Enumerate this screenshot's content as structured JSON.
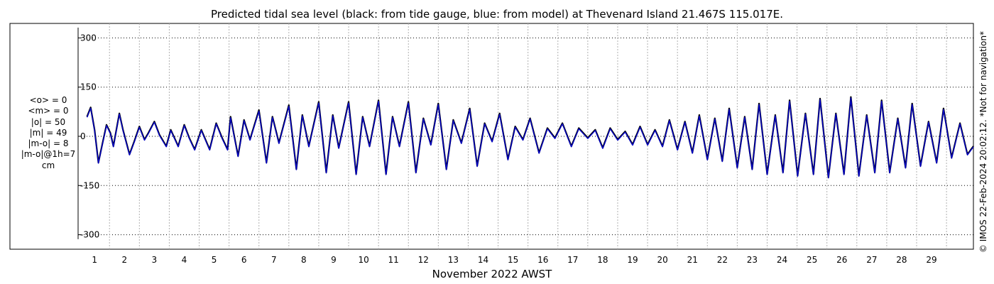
{
  "chart_data": {
    "type": "line",
    "title": "Predicted tidal sea level (black: from tide gauge, blue: from model) at Thevenard Island 21.467S 115.017E.",
    "xlabel": "November 2022 AWST",
    "ylabel": "",
    "x_ticks": [
      "1",
      "2",
      "3",
      "4",
      "5",
      "6",
      "7",
      "8",
      "9",
      "10",
      "11",
      "12",
      "13",
      "14",
      "15",
      "16",
      "17",
      "18",
      "19",
      "20",
      "21",
      "22",
      "23",
      "24",
      "25",
      "26",
      "27",
      "28",
      "29"
    ],
    "xlim": [
      0.0,
      29.95
    ],
    "y_ticks": [
      300,
      150,
      0,
      -150,
      -300
    ],
    "y_tick_labels": [
      "300",
      "150",
      "0",
      "-150",
      "-300"
    ],
    "ylim": [
      -320,
      340
    ],
    "grid": true,
    "x_unit": "day of November 2022 (AWST)",
    "y_unit": "cm",
    "series": [
      {
        "color": "#000000",
        "style": "solid",
        "description_key": "tide gauge",
        "points": [
          [
            0.3,
            60
          ],
          [
            0.42,
            88
          ],
          [
            0.55,
            20
          ],
          [
            0.68,
            -80
          ],
          [
            0.82,
            -20
          ],
          [
            0.95,
            35
          ],
          [
            1.08,
            10
          ],
          [
            1.18,
            -30
          ],
          [
            1.38,
            70
          ],
          [
            1.5,
            20
          ],
          [
            1.72,
            -55
          ],
          [
            1.88,
            -15
          ],
          [
            2.05,
            30
          ],
          [
            2.22,
            -10
          ],
          [
            2.35,
            10
          ],
          [
            2.55,
            45
          ],
          [
            2.72,
            5
          ],
          [
            2.95,
            -30
          ],
          [
            3.1,
            20
          ],
          [
            3.35,
            -30
          ],
          [
            3.55,
            35
          ],
          [
            3.72,
            -5
          ],
          [
            3.9,
            -40
          ],
          [
            4.12,
            20
          ],
          [
            4.4,
            -40
          ],
          [
            4.62,
            40
          ],
          [
            4.82,
            -5
          ],
          [
            5.0,
            -40
          ],
          [
            5.1,
            60
          ],
          [
            5.35,
            -60
          ],
          [
            5.55,
            50
          ],
          [
            5.75,
            -10
          ],
          [
            6.05,
            80
          ],
          [
            6.3,
            -80
          ],
          [
            6.5,
            60
          ],
          [
            6.72,
            -20
          ],
          [
            7.05,
            95
          ],
          [
            7.3,
            -100
          ],
          [
            7.5,
            65
          ],
          [
            7.72,
            -30
          ],
          [
            8.05,
            105
          ],
          [
            8.3,
            -110
          ],
          [
            8.52,
            65
          ],
          [
            8.72,
            -35
          ],
          [
            9.05,
            105
          ],
          [
            9.3,
            -115
          ],
          [
            9.52,
            60
          ],
          [
            9.75,
            -30
          ],
          [
            10.05,
            110
          ],
          [
            10.3,
            -115
          ],
          [
            10.52,
            60
          ],
          [
            10.75,
            -30
          ],
          [
            11.05,
            105
          ],
          [
            11.3,
            -110
          ],
          [
            11.55,
            55
          ],
          [
            11.8,
            -25
          ],
          [
            12.05,
            100
          ],
          [
            12.32,
            -100
          ],
          [
            12.55,
            50
          ],
          [
            12.82,
            -20
          ],
          [
            13.1,
            85
          ],
          [
            13.35,
            -90
          ],
          [
            13.6,
            40
          ],
          [
            13.85,
            -15
          ],
          [
            14.1,
            70
          ],
          [
            14.38,
            -70
          ],
          [
            14.62,
            30
          ],
          [
            14.88,
            -10
          ],
          [
            15.12,
            55
          ],
          [
            15.42,
            -50
          ],
          [
            15.7,
            25
          ],
          [
            15.95,
            -5
          ],
          [
            16.2,
            40
          ],
          [
            16.5,
            -30
          ],
          [
            16.75,
            25
          ],
          [
            17.05,
            -5
          ],
          [
            17.3,
            20
          ],
          [
            17.55,
            -35
          ],
          [
            17.8,
            25
          ],
          [
            18.05,
            -10
          ],
          [
            18.3,
            15
          ],
          [
            18.55,
            -25
          ],
          [
            18.8,
            30
          ],
          [
            19.05,
            -25
          ],
          [
            19.3,
            20
          ],
          [
            19.55,
            -30
          ],
          [
            19.78,
            50
          ],
          [
            20.05,
            -40
          ],
          [
            20.3,
            45
          ],
          [
            20.55,
            -50
          ],
          [
            20.78,
            65
          ],
          [
            21.05,
            -70
          ],
          [
            21.3,
            55
          ],
          [
            21.55,
            -75
          ],
          [
            21.78,
            85
          ],
          [
            22.05,
            -95
          ],
          [
            22.3,
            60
          ],
          [
            22.55,
            -100
          ],
          [
            22.78,
            100
          ],
          [
            23.05,
            -115
          ],
          [
            23.32,
            65
          ],
          [
            23.58,
            -110
          ],
          [
            23.8,
            110
          ],
          [
            24.07,
            -120
          ],
          [
            24.33,
            70
          ],
          [
            24.6,
            -115
          ],
          [
            24.82,
            115
          ],
          [
            25.1,
            -125
          ],
          [
            25.35,
            70
          ],
          [
            25.62,
            -115
          ],
          [
            25.85,
            120
          ],
          [
            26.12,
            -120
          ],
          [
            26.38,
            65
          ],
          [
            26.65,
            -110
          ],
          [
            26.88,
            110
          ],
          [
            27.15,
            -110
          ],
          [
            27.42,
            55
          ],
          [
            27.68,
            -95
          ],
          [
            27.9,
            100
          ],
          [
            28.18,
            -90
          ],
          [
            28.45,
            45
          ],
          [
            28.72,
            -80
          ],
          [
            28.95,
            85
          ],
          [
            29.22,
            -65
          ],
          [
            29.5,
            40
          ],
          [
            29.75,
            -55
          ],
          [
            29.95,
            -30
          ]
        ]
      },
      {
        "color": "#0000c8",
        "style": "solid",
        "description_key": "model",
        "points": [
          [
            0.3,
            58
          ],
          [
            0.42,
            86
          ],
          [
            0.55,
            18
          ],
          [
            0.68,
            -82
          ],
          [
            0.82,
            -22
          ],
          [
            0.95,
            33
          ],
          [
            1.08,
            8
          ],
          [
            1.18,
            -32
          ],
          [
            1.38,
            68
          ],
          [
            1.5,
            18
          ],
          [
            1.72,
            -57
          ],
          [
            1.88,
            -17
          ],
          [
            2.05,
            28
          ],
          [
            2.22,
            -12
          ],
          [
            2.35,
            8
          ],
          [
            2.55,
            43
          ],
          [
            2.72,
            3
          ],
          [
            2.95,
            -32
          ],
          [
            3.1,
            18
          ],
          [
            3.35,
            -32
          ],
          [
            3.55,
            33
          ],
          [
            3.72,
            -7
          ],
          [
            3.9,
            -42
          ],
          [
            4.12,
            18
          ],
          [
            4.4,
            -42
          ],
          [
            4.62,
            38
          ],
          [
            4.82,
            -7
          ],
          [
            5.0,
            -42
          ],
          [
            5.1,
            57
          ],
          [
            5.35,
            -62
          ],
          [
            5.55,
            48
          ],
          [
            5.75,
            -12
          ],
          [
            6.05,
            77
          ],
          [
            6.3,
            -82
          ],
          [
            6.5,
            58
          ],
          [
            6.72,
            -22
          ],
          [
            7.05,
            92
          ],
          [
            7.3,
            -102
          ],
          [
            7.5,
            63
          ],
          [
            7.72,
            -32
          ],
          [
            8.05,
            102
          ],
          [
            8.3,
            -112
          ],
          [
            8.52,
            63
          ],
          [
            8.72,
            -37
          ],
          [
            9.05,
            102
          ],
          [
            9.3,
            -117
          ],
          [
            9.52,
            58
          ],
          [
            9.75,
            -32
          ],
          [
            10.05,
            107
          ],
          [
            10.3,
            -117
          ],
          [
            10.52,
            58
          ],
          [
            10.75,
            -32
          ],
          [
            11.05,
            102
          ],
          [
            11.3,
            -112
          ],
          [
            11.55,
            53
          ],
          [
            11.8,
            -27
          ],
          [
            12.05,
            97
          ],
          [
            12.32,
            -102
          ],
          [
            12.55,
            48
          ],
          [
            12.82,
            -22
          ],
          [
            13.1,
            82
          ],
          [
            13.35,
            -92
          ],
          [
            13.6,
            38
          ],
          [
            13.85,
            -17
          ],
          [
            14.1,
            67
          ],
          [
            14.38,
            -72
          ],
          [
            14.62,
            28
          ],
          [
            14.88,
            -12
          ],
          [
            15.12,
            53
          ],
          [
            15.42,
            -52
          ],
          [
            15.7,
            23
          ],
          [
            15.95,
            -7
          ],
          [
            16.2,
            38
          ],
          [
            16.5,
            -32
          ],
          [
            16.75,
            23
          ],
          [
            17.05,
            -7
          ],
          [
            17.3,
            18
          ],
          [
            17.55,
            -37
          ],
          [
            17.8,
            23
          ],
          [
            18.05,
            -12
          ],
          [
            18.3,
            13
          ],
          [
            18.55,
            -27
          ],
          [
            18.8,
            28
          ],
          [
            19.05,
            -27
          ],
          [
            19.3,
            18
          ],
          [
            19.55,
            -32
          ],
          [
            19.78,
            48
          ],
          [
            20.05,
            -42
          ],
          [
            20.3,
            43
          ],
          [
            20.55,
            -52
          ],
          [
            20.78,
            62
          ],
          [
            21.05,
            -72
          ],
          [
            21.3,
            53
          ],
          [
            21.55,
            -77
          ],
          [
            21.78,
            82
          ],
          [
            22.05,
            -97
          ],
          [
            22.3,
            58
          ],
          [
            22.55,
            -102
          ],
          [
            22.78,
            97
          ],
          [
            23.05,
            -117
          ],
          [
            23.32,
            63
          ],
          [
            23.58,
            -112
          ],
          [
            23.8,
            107
          ],
          [
            24.07,
            -122
          ],
          [
            24.33,
            68
          ],
          [
            24.6,
            -117
          ],
          [
            24.82,
            112
          ],
          [
            25.1,
            -127
          ],
          [
            25.35,
            68
          ],
          [
            25.62,
            -117
          ],
          [
            25.85,
            117
          ],
          [
            26.12,
            -122
          ],
          [
            26.38,
            63
          ],
          [
            26.65,
            -112
          ],
          [
            26.88,
            107
          ],
          [
            27.15,
            -112
          ],
          [
            27.42,
            53
          ],
          [
            27.68,
            -97
          ],
          [
            27.9,
            97
          ],
          [
            28.18,
            -92
          ],
          [
            28.45,
            43
          ],
          [
            28.72,
            -82
          ],
          [
            28.95,
            82
          ],
          [
            29.22,
            -67
          ],
          [
            29.5,
            38
          ],
          [
            29.75,
            -57
          ],
          [
            29.95,
            -32
          ]
        ]
      }
    ]
  },
  "stats": [
    "<o> = 0",
    "<m> = 0",
    "|o| = 50",
    "|m| = 49",
    "|m-o| = 8",
    "|m-o|@1h=7",
    "cm"
  ],
  "credit": "© IMOS 22-Feb-2024 20:02:12. *Not for navigation*"
}
